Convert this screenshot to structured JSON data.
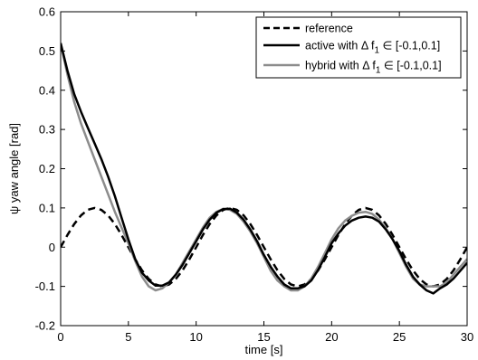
{
  "chart_data": {
    "type": "line",
    "xlabel": "time [s]",
    "ylabel": "ψ yaw angle [rad]",
    "xlim": [
      0,
      30
    ],
    "ylim": [
      -0.2,
      0.6
    ],
    "x_ticks": [
      "0",
      "5",
      "10",
      "15",
      "20",
      "25",
      "30"
    ],
    "y_ticks": [
      "-0.2",
      "-0.1",
      "0",
      "0.1",
      "0.2",
      "0.3",
      "0.4",
      "0.5",
      "0.6"
    ],
    "grid": false,
    "legend_position": "top-right",
    "legend": {
      "reference": "reference",
      "active": {
        "prefix": "active with Δ f",
        "sub": "1",
        "suffix": " ∈ [-0.1,0.1]"
      },
      "hybrid": {
        "prefix": "hybrid with Δ f",
        "sub": "1",
        "suffix": " ∈ [-0.1,0.1]"
      }
    },
    "series": [
      {
        "key": "reference",
        "color": "#000000",
        "style": "dashed",
        "x": [
          0,
          0.5,
          1,
          1.5,
          2,
          2.5,
          3,
          3.5,
          4,
          4.5,
          5,
          5.5,
          6,
          6.5,
          7,
          7.5,
          8,
          8.5,
          9,
          9.5,
          10,
          10.5,
          11,
          11.5,
          12,
          12.5,
          13,
          13.5,
          14,
          14.5,
          15,
          15.5,
          16,
          16.5,
          17,
          17.5,
          18,
          18.5,
          19,
          19.5,
          20,
          20.5,
          21,
          21.5,
          22,
          22.5,
          23,
          23.5,
          24,
          24.5,
          25,
          25.5,
          26,
          26.5,
          27,
          27.5,
          28,
          28.5,
          29,
          29.5,
          30
        ],
        "y": [
          0,
          0.031,
          0.059,
          0.081,
          0.095,
          0.1,
          0.095,
          0.081,
          0.059,
          0.031,
          0,
          -0.031,
          -0.059,
          -0.081,
          -0.095,
          -0.1,
          -0.095,
          -0.081,
          -0.059,
          -0.031,
          0,
          0.031,
          0.059,
          0.081,
          0.095,
          0.1,
          0.095,
          0.081,
          0.059,
          0.031,
          0,
          -0.031,
          -0.059,
          -0.081,
          -0.095,
          -0.1,
          -0.095,
          -0.081,
          -0.059,
          -0.031,
          0,
          0.031,
          0.059,
          0.081,
          0.095,
          0.1,
          0.095,
          0.081,
          0.059,
          0.031,
          0,
          -0.031,
          -0.059,
          -0.081,
          -0.095,
          -0.1,
          -0.095,
          -0.081,
          -0.059,
          -0.031,
          0
        ]
      },
      {
        "key": "active",
        "color": "#000000",
        "style": "solid",
        "x": [
          0,
          0.5,
          1,
          1.5,
          2,
          2.5,
          3,
          3.5,
          4,
          4.5,
          5,
          5.5,
          6,
          6.5,
          7,
          7.5,
          8,
          8.5,
          9,
          9.5,
          10,
          10.5,
          11,
          11.5,
          12,
          12.5,
          13,
          13.5,
          14,
          14.5,
          15,
          15.5,
          16,
          16.5,
          17,
          17.5,
          18,
          18.5,
          19,
          19.5,
          20,
          20.5,
          21,
          21.5,
          22,
          22.5,
          23,
          23.5,
          24,
          24.5,
          25,
          25.5,
          26,
          26.5,
          27,
          27.5,
          28,
          28.5,
          29,
          29.5,
          30
        ],
        "y": [
          0.52,
          0.45,
          0.39,
          0.345,
          0.305,
          0.265,
          0.225,
          0.18,
          0.13,
          0.075,
          0.02,
          -0.03,
          -0.065,
          -0.085,
          -0.098,
          -0.098,
          -0.09,
          -0.07,
          -0.045,
          -0.015,
          0.015,
          0.045,
          0.07,
          0.088,
          0.097,
          0.098,
          0.088,
          0.07,
          0.045,
          0.015,
          -0.02,
          -0.05,
          -0.075,
          -0.095,
          -0.105,
          -0.105,
          -0.1,
          -0.085,
          -0.058,
          -0.025,
          0.01,
          0.035,
          0.055,
          0.068,
          0.075,
          0.078,
          0.075,
          0.065,
          0.045,
          0.02,
          -0.01,
          -0.045,
          -0.075,
          -0.095,
          -0.11,
          -0.118,
          -0.105,
          -0.095,
          -0.08,
          -0.06,
          -0.04
        ]
      },
      {
        "key": "hybrid",
        "color": "#8c8c8c",
        "style": "solid",
        "x": [
          0,
          0.5,
          1,
          1.5,
          2,
          2.5,
          3,
          3.5,
          4,
          4.5,
          5,
          5.5,
          6,
          6.5,
          7,
          7.5,
          8,
          8.5,
          9,
          9.5,
          10,
          10.5,
          11,
          11.5,
          12,
          12.5,
          13,
          13.5,
          14,
          14.5,
          15,
          15.5,
          16,
          16.5,
          17,
          17.5,
          18,
          18.5,
          19,
          19.5,
          20,
          20.5,
          21,
          21.5,
          22,
          22.5,
          23,
          23.5,
          24,
          24.5,
          25,
          25.5,
          26,
          26.5,
          27,
          27.5,
          28,
          28.5,
          29,
          29.5,
          30
        ],
        "y": [
          0.52,
          0.44,
          0.37,
          0.315,
          0.27,
          0.225,
          0.18,
          0.135,
          0.09,
          0.05,
          0.01,
          -0.035,
          -0.075,
          -0.1,
          -0.11,
          -0.105,
          -0.09,
          -0.07,
          -0.04,
          -0.01,
          0.02,
          0.05,
          0.075,
          0.09,
          0.098,
          0.095,
          0.085,
          0.065,
          0.04,
          0.01,
          -0.025,
          -0.06,
          -0.085,
          -0.1,
          -0.11,
          -0.11,
          -0.1,
          -0.08,
          -0.05,
          -0.015,
          0.02,
          0.048,
          0.068,
          0.08,
          0.088,
          0.09,
          0.085,
          0.07,
          0.048,
          0.02,
          -0.015,
          -0.05,
          -0.08,
          -0.095,
          -0.1,
          -0.1,
          -0.1,
          -0.09,
          -0.07,
          -0.05,
          -0.03
        ]
      }
    ]
  }
}
